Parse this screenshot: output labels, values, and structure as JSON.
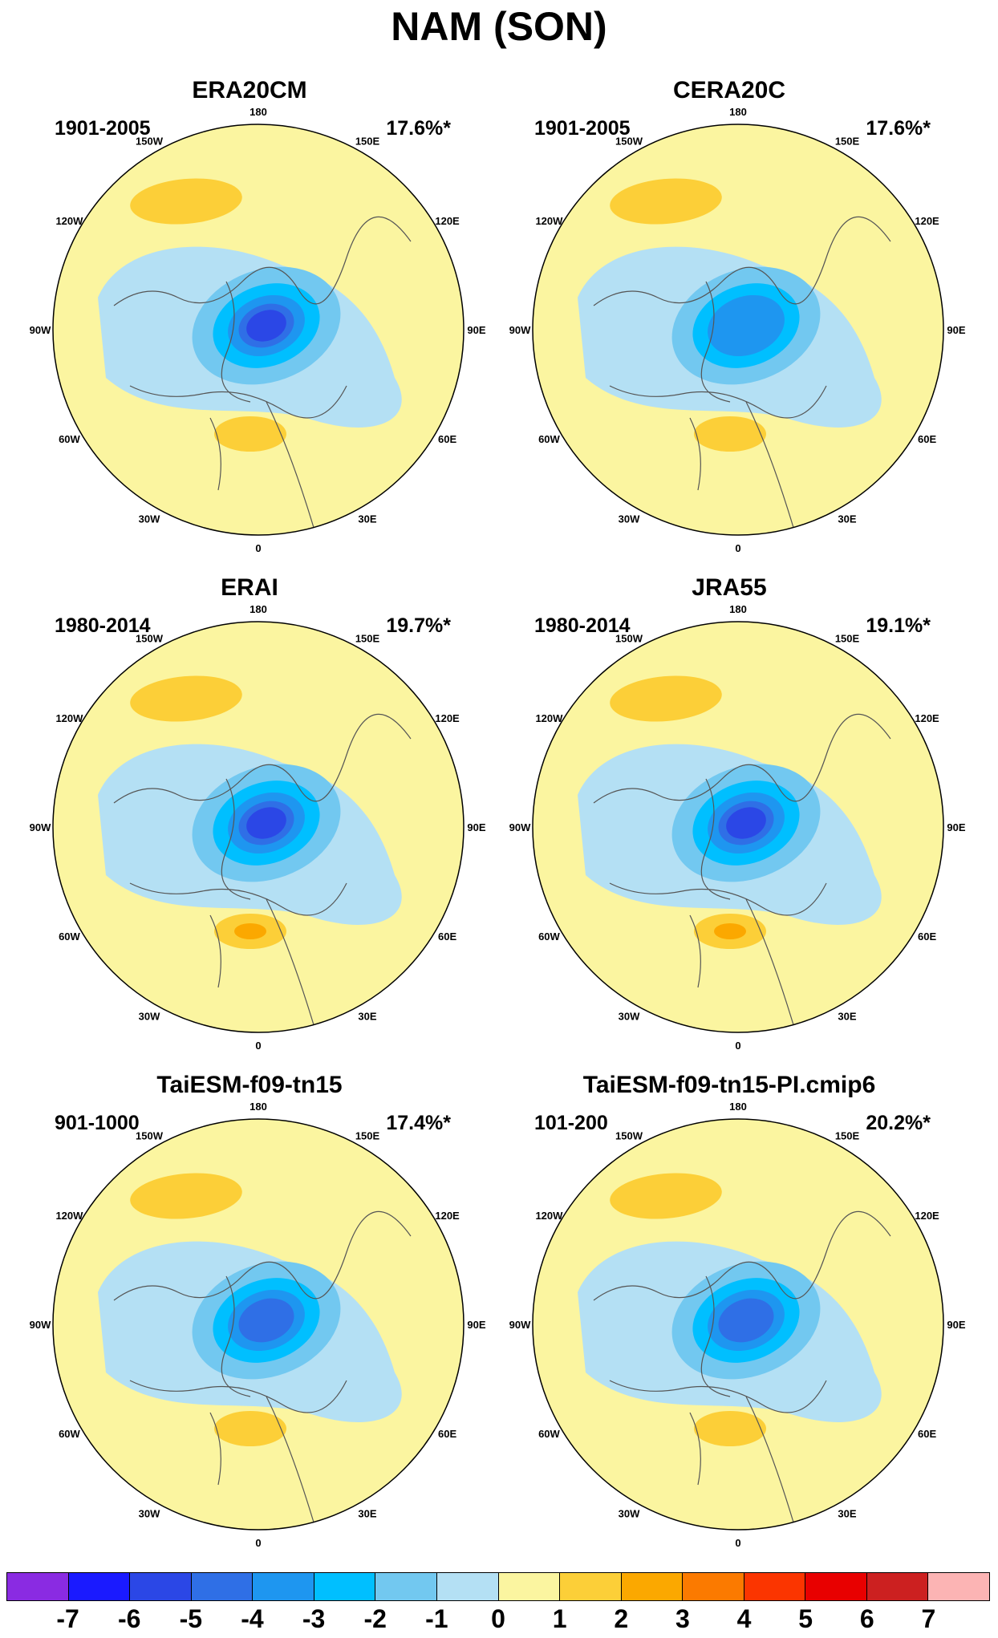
{
  "title": "NAM (SON)",
  "colors": {
    "-7": "#8a2be2",
    "-6": "#1a1aff",
    "-5": "#2b47e6",
    "-4": "#2f6fe6",
    "-3": "#1e96f0",
    "-2": "#00bfff",
    "-1": "#72c8f0",
    "0": "#b4e0f4",
    "1": "#fbf5a0",
    "2": "#fccf38",
    "3": "#fba800",
    "4": "#fb7a00",
    "5": "#fb3500",
    "6": "#e80000",
    "7": "#cc2020",
    "8": "#fcb4b4",
    "land_outline": "#555555"
  },
  "longitude_labels": [
    "180",
    "150E",
    "120E",
    "90E",
    "60E",
    "30E",
    "0",
    "30W",
    "60W",
    "90W",
    "120W",
    "150W"
  ],
  "chart_data": [
    {
      "type": "map",
      "title": "ERA20CM",
      "period": "1901-2005",
      "explained_variance": "17.6%*",
      "regime": {
        "negative_center_min": -5,
        "positive_pacific_max": 2,
        "positive_atlantic_max": 2
      }
    },
    {
      "type": "map",
      "title": "CERA20C",
      "period": "1901-2005",
      "explained_variance": "17.6%*",
      "regime": {
        "negative_center_min": -3,
        "positive_pacific_max": 2,
        "positive_atlantic_max": 2
      }
    },
    {
      "type": "map",
      "title": "ERAI",
      "period": "1980-2014",
      "explained_variance": "19.7%*",
      "regime": {
        "negative_center_min": -5,
        "positive_pacific_max": 2,
        "positive_atlantic_max": 3
      }
    },
    {
      "type": "map",
      "title": "JRA55",
      "period": "1980-2014",
      "explained_variance": "19.1%*",
      "regime": {
        "negative_center_min": -5,
        "positive_pacific_max": 2,
        "positive_atlantic_max": 3
      }
    },
    {
      "type": "map",
      "title": "TaiESM-f09-tn15",
      "period": "901-1000",
      "explained_variance": "17.4%*",
      "regime": {
        "negative_center_min": -4,
        "positive_pacific_max": 2,
        "positive_atlantic_max": 2
      }
    },
    {
      "type": "map",
      "title": "TaiESM-f09-tn15-PI.cmip6",
      "period": "101-200",
      "explained_variance": "20.2%*",
      "regime": {
        "negative_center_min": -4,
        "positive_pacific_max": 2,
        "positive_atlantic_max": 2
      }
    }
  ],
  "colorbar": {
    "labels": [
      "-7",
      "-6",
      "-5",
      "-4",
      "-3",
      "-2",
      "-1",
      "0",
      "1",
      "2",
      "3",
      "4",
      "5",
      "6",
      "7"
    ],
    "colors": [
      "#8a2be2",
      "#1a1aff",
      "#2b47e6",
      "#2f6fe6",
      "#1e96f0",
      "#00bfff",
      "#72c8f0",
      "#b4e0f4",
      "#fbf5a0",
      "#fccf38",
      "#fba800",
      "#fb7a00",
      "#fb3500",
      "#e80000",
      "#cc2020",
      "#fcb4b4"
    ]
  }
}
